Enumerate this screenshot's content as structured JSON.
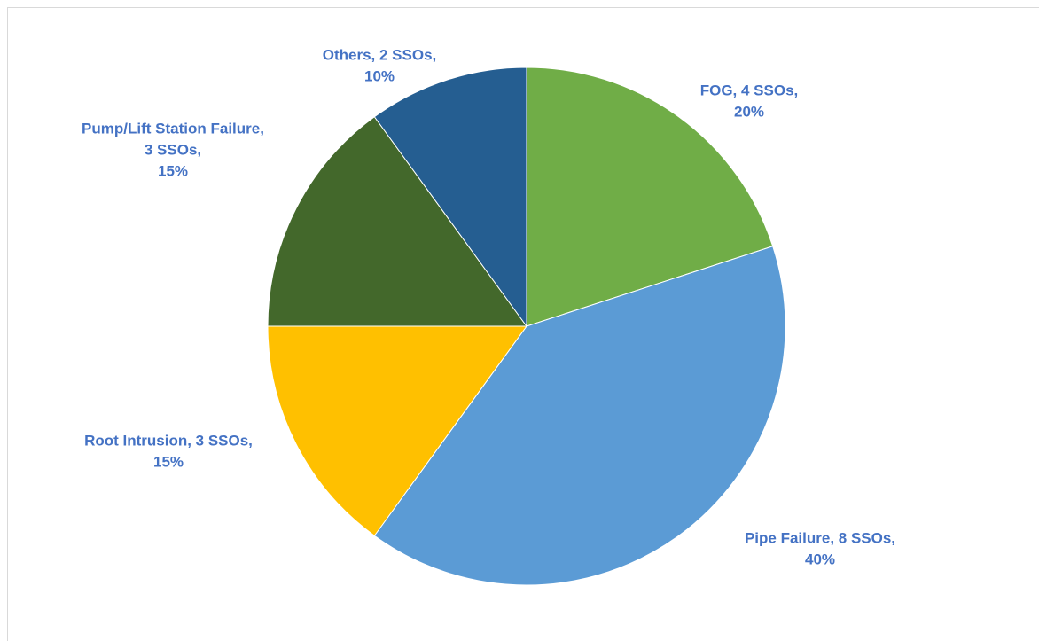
{
  "chart_data": {
    "type": "pie",
    "values": [
      20,
      40,
      15,
      15,
      10
    ],
    "value_labels": [
      [
        "FOG, 4 SSOs,",
        "20%"
      ],
      [
        "Pipe Failure, 8 SSOs,",
        "40%"
      ],
      [
        "Root Intrusion, 3 SSOs,",
        "15%"
      ],
      [
        "Pump/Lift Station Failure,",
        "3 SSOs,",
        "15%"
      ],
      [
        "Others, 2 SSOs,",
        "10%"
      ]
    ],
    "colors": [
      "#70ad47",
      "#5b9bd5",
      "#ffc000",
      "#43682b",
      "#255e91"
    ]
  }
}
